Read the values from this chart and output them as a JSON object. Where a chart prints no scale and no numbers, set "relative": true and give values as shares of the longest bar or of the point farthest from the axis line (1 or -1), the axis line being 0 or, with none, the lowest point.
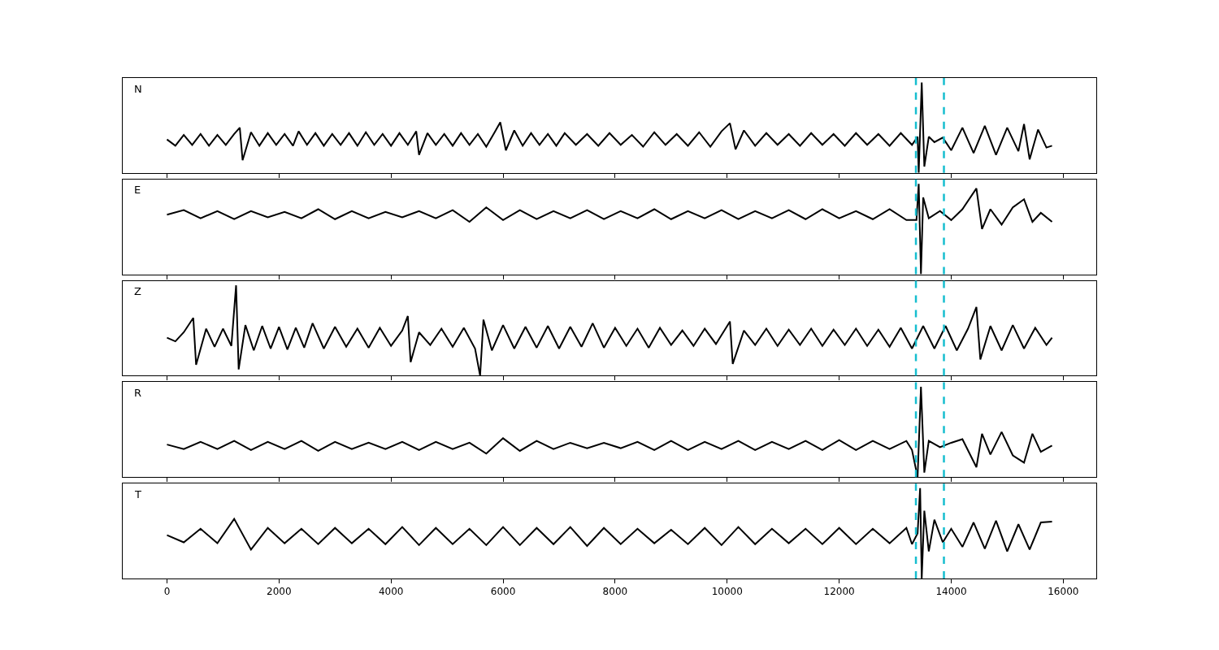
{
  "chart_data": [
    {
      "type": "line",
      "title": "N",
      "relative": true,
      "xlim": [
        -790,
        16590
      ],
      "xticks": [
        0,
        2000,
        4000,
        6000,
        8000,
        10000,
        12000,
        14000,
        16000
      ],
      "tick_labels": false,
      "line_style": "solid",
      "x": [
        0,
        150,
        300,
        450,
        600,
        750,
        900,
        1050,
        1200,
        1300,
        1350,
        1500,
        1650,
        1800,
        1950,
        2100,
        2250,
        2350,
        2500,
        2650,
        2800,
        2950,
        3100,
        3250,
        3400,
        3550,
        3700,
        3850,
        4000,
        4150,
        4300,
        4450,
        4500,
        4650,
        4800,
        4950,
        5100,
        5250,
        5400,
        5550,
        5700,
        5850,
        5950,
        6050,
        6200,
        6350,
        6500,
        6650,
        6800,
        6950,
        7100,
        7300,
        7500,
        7700,
        7900,
        8100,
        8300,
        8500,
        8700,
        8900,
        9100,
        9300,
        9500,
        9700,
        9900,
        10050,
        10150,
        10300,
        10500,
        10700,
        10900,
        11100,
        11300,
        11500,
        11700,
        11900,
        12100,
        12300,
        12500,
        12700,
        12900,
        13100,
        13300,
        13400,
        13420,
        13474,
        13520,
        13600,
        13700,
        13850,
        14000,
        14200,
        14400,
        14600,
        14800,
        15000,
        15200,
        15300,
        15400,
        15550,
        15700,
        15800
      ],
      "series": [
        {
          "color": "#000000",
          "values": [
            0.37,
            0.3,
            0.42,
            0.31,
            0.43,
            0.3,
            0.42,
            0.31,
            0.43,
            0.5,
            0.14,
            0.45,
            0.3,
            0.44,
            0.31,
            0.43,
            0.3,
            0.46,
            0.31,
            0.44,
            0.3,
            0.43,
            0.31,
            0.44,
            0.3,
            0.45,
            0.31,
            0.43,
            0.3,
            0.44,
            0.31,
            0.46,
            0.2,
            0.44,
            0.31,
            0.43,
            0.3,
            0.44,
            0.31,
            0.43,
            0.29,
            0.45,
            0.56,
            0.25,
            0.47,
            0.3,
            0.44,
            0.31,
            0.43,
            0.3,
            0.44,
            0.31,
            0.43,
            0.3,
            0.44,
            0.31,
            0.42,
            0.29,
            0.45,
            0.31,
            0.43,
            0.3,
            0.45,
            0.29,
            0.46,
            0.55,
            0.26,
            0.47,
            0.3,
            0.44,
            0.31,
            0.43,
            0.3,
            0.44,
            0.31,
            0.43,
            0.3,
            0.44,
            0.31,
            0.43,
            0.3,
            0.44,
            0.31,
            0.4,
            0.0,
            1.0,
            0.07,
            0.4,
            0.34,
            0.39,
            0.25,
            0.5,
            0.22,
            0.52,
            0.2,
            0.5,
            0.24,
            0.54,
            0.15,
            0.48,
            0.28,
            0.3
          ]
        }
      ],
      "ref_lines": [
        {
          "axis": "x",
          "value": 13370,
          "color": "#17becf",
          "line_style": "dashed"
        },
        {
          "axis": "x",
          "value": 13870,
          "color": "#17becf",
          "line_style": "dashed"
        }
      ]
    },
    {
      "type": "line",
      "title": "E",
      "relative": true,
      "xlim": [
        -790,
        16590
      ],
      "xticks": [
        0,
        2000,
        4000,
        6000,
        8000,
        10000,
        12000,
        14000,
        16000
      ],
      "tick_labels": false,
      "line_style": "solid",
      "x": [
        0,
        300,
        600,
        900,
        1200,
        1500,
        1800,
        2100,
        2400,
        2700,
        3000,
        3300,
        3600,
        3900,
        4200,
        4500,
        4800,
        5100,
        5400,
        5700,
        6000,
        6300,
        6600,
        6900,
        7200,
        7500,
        7800,
        8100,
        8400,
        8700,
        9000,
        9300,
        9600,
        9900,
        10200,
        10500,
        10800,
        11100,
        11400,
        11700,
        12000,
        12300,
        12600,
        12900,
        13200,
        13380,
        13420,
        13460,
        13500,
        13600,
        13800,
        14000,
        14200,
        14450,
        14550,
        14700,
        14900,
        15100,
        15300,
        15450,
        15600,
        15800
      ],
      "series": [
        {
          "color": "#000000",
          "values": [
            0.66,
            0.71,
            0.62,
            0.7,
            0.61,
            0.7,
            0.63,
            0.69,
            0.62,
            0.72,
            0.61,
            0.7,
            0.62,
            0.69,
            0.63,
            0.7,
            0.62,
            0.71,
            0.58,
            0.74,
            0.6,
            0.71,
            0.61,
            0.7,
            0.62,
            0.71,
            0.61,
            0.7,
            0.62,
            0.72,
            0.61,
            0.7,
            0.62,
            0.71,
            0.61,
            0.7,
            0.62,
            0.71,
            0.61,
            0.72,
            0.62,
            0.7,
            0.61,
            0.72,
            0.6,
            0.6,
            1.0,
            0.0,
            0.85,
            0.62,
            0.7,
            0.6,
            0.72,
            0.95,
            0.5,
            0.72,
            0.55,
            0.74,
            0.83,
            0.58,
            0.68,
            0.58
          ]
        }
      ],
      "ref_lines": [
        {
          "axis": "x",
          "value": 13370,
          "color": "#17becf",
          "line_style": "dashed"
        },
        {
          "axis": "x",
          "value": 13870,
          "color": "#17becf",
          "line_style": "dashed"
        }
      ]
    },
    {
      "type": "line",
      "title": "Z",
      "relative": true,
      "xlim": [
        -790,
        16590
      ],
      "xticks": [
        0,
        2000,
        4000,
        6000,
        8000,
        10000,
        12000,
        14000,
        16000
      ],
      "tick_labels": false,
      "line_style": "solid",
      "x": [
        0,
        150,
        300,
        470,
        520,
        700,
        850,
        1000,
        1150,
        1234,
        1280,
        1400,
        1550,
        1700,
        1850,
        2000,
        2150,
        2300,
        2450,
        2600,
        2800,
        3000,
        3200,
        3400,
        3600,
        3800,
        4000,
        4200,
        4300,
        4350,
        4500,
        4700,
        4900,
        5100,
        5300,
        5500,
        5590,
        5650,
        5800,
        6000,
        6200,
        6400,
        6600,
        6800,
        7000,
        7200,
        7400,
        7600,
        7800,
        8000,
        8200,
        8400,
        8600,
        8800,
        9000,
        9200,
        9400,
        9600,
        9800,
        10050,
        10100,
        10300,
        10500,
        10700,
        10900,
        11100,
        11300,
        11500,
        11700,
        11900,
        12100,
        12300,
        12500,
        12700,
        12900,
        13100,
        13300,
        13500,
        13700,
        13900,
        14100,
        14300,
        14450,
        14520,
        14700,
        14900,
        15100,
        15300,
        15500,
        15700,
        15800
      ],
      "series": [
        {
          "color": "#000000",
          "values": [
            0.42,
            0.38,
            0.48,
            0.64,
            0.12,
            0.52,
            0.32,
            0.52,
            0.33,
            1.0,
            0.07,
            0.56,
            0.28,
            0.55,
            0.3,
            0.54,
            0.29,
            0.53,
            0.31,
            0.58,
            0.3,
            0.54,
            0.32,
            0.52,
            0.31,
            0.53,
            0.33,
            0.5,
            0.66,
            0.15,
            0.48,
            0.34,
            0.52,
            0.32,
            0.53,
            0.3,
            0.0,
            0.62,
            0.28,
            0.56,
            0.3,
            0.54,
            0.31,
            0.55,
            0.3,
            0.54,
            0.32,
            0.58,
            0.31,
            0.53,
            0.33,
            0.52,
            0.31,
            0.53,
            0.34,
            0.5,
            0.33,
            0.52,
            0.35,
            0.6,
            0.13,
            0.5,
            0.34,
            0.52,
            0.33,
            0.51,
            0.34,
            0.52,
            0.33,
            0.51,
            0.34,
            0.52,
            0.33,
            0.51,
            0.32,
            0.53,
            0.3,
            0.55,
            0.3,
            0.55,
            0.28,
            0.52,
            0.76,
            0.18,
            0.55,
            0.28,
            0.56,
            0.3,
            0.53,
            0.34,
            0.42
          ]
        }
      ],
      "ref_lines": [
        {
          "axis": "x",
          "value": 13370,
          "color": "#17becf",
          "line_style": "dashed"
        },
        {
          "axis": "x",
          "value": 13870,
          "color": "#17becf",
          "line_style": "dashed"
        }
      ]
    },
    {
      "type": "line",
      "title": "R",
      "relative": true,
      "xlim": [
        -790,
        16590
      ],
      "xticks": [
        0,
        2000,
        4000,
        6000,
        8000,
        10000,
        12000,
        14000,
        16000
      ],
      "tick_labels": false,
      "line_style": "solid",
      "x": [
        0,
        300,
        600,
        900,
        1200,
        1500,
        1800,
        2100,
        2400,
        2700,
        3000,
        3300,
        3600,
        3900,
        4200,
        4500,
        4800,
        5100,
        5400,
        5700,
        6000,
        6300,
        6600,
        6900,
        7200,
        7500,
        7800,
        8100,
        8400,
        8700,
        9000,
        9300,
        9600,
        9900,
        10200,
        10500,
        10800,
        11100,
        11400,
        11700,
        12000,
        12300,
        12600,
        12900,
        13200,
        13300,
        13400,
        13460,
        13520,
        13600,
        13800,
        14000,
        14200,
        14450,
        14550,
        14700,
        14900,
        15100,
        15300,
        15450,
        15600,
        15800
      ],
      "series": [
        {
          "color": "#000000",
          "values": [
            0.36,
            0.31,
            0.39,
            0.31,
            0.4,
            0.3,
            0.39,
            0.31,
            0.4,
            0.29,
            0.39,
            0.31,
            0.38,
            0.31,
            0.39,
            0.3,
            0.39,
            0.31,
            0.38,
            0.26,
            0.43,
            0.29,
            0.4,
            0.31,
            0.38,
            0.32,
            0.38,
            0.32,
            0.39,
            0.3,
            0.4,
            0.3,
            0.39,
            0.31,
            0.4,
            0.3,
            0.39,
            0.31,
            0.4,
            0.3,
            0.41,
            0.3,
            0.4,
            0.31,
            0.4,
            0.3,
            0.0,
            1.0,
            0.05,
            0.4,
            0.33,
            0.38,
            0.42,
            0.11,
            0.48,
            0.25,
            0.5,
            0.24,
            0.16,
            0.48,
            0.28,
            0.35
          ]
        }
      ],
      "ref_lines": [
        {
          "axis": "x",
          "value": 13370,
          "color": "#17becf",
          "line_style": "dashed"
        },
        {
          "axis": "x",
          "value": 13870,
          "color": "#17becf",
          "line_style": "dashed"
        }
      ]
    },
    {
      "type": "line",
      "title": "T",
      "relative": true,
      "xlim": [
        -790,
        16590
      ],
      "xticks": [
        0,
        2000,
        4000,
        6000,
        8000,
        10000,
        12000,
        14000,
        16000
      ],
      "tick_labels": "x",
      "line_style": "solid",
      "x": [
        0,
        300,
        600,
        900,
        1200,
        1500,
        1800,
        2100,
        2400,
        2700,
        3000,
        3300,
        3600,
        3900,
        4200,
        4500,
        4800,
        5100,
        5400,
        5700,
        6000,
        6300,
        6600,
        6900,
        7200,
        7500,
        7800,
        8100,
        8400,
        8700,
        9000,
        9300,
        9600,
        9900,
        10200,
        10500,
        10800,
        11100,
        11400,
        11700,
        12000,
        12300,
        12600,
        12900,
        13200,
        13300,
        13400,
        13445,
        13474,
        13520,
        13600,
        13700,
        13850,
        14000,
        14200,
        14400,
        14600,
        14800,
        15000,
        15200,
        15400,
        15600,
        15800
      ],
      "series": [
        {
          "color": "#000000",
          "values": [
            0.48,
            0.4,
            0.55,
            0.39,
            0.66,
            0.32,
            0.56,
            0.39,
            0.55,
            0.38,
            0.56,
            0.39,
            0.55,
            0.38,
            0.57,
            0.37,
            0.56,
            0.38,
            0.55,
            0.37,
            0.57,
            0.37,
            0.56,
            0.38,
            0.57,
            0.36,
            0.56,
            0.38,
            0.55,
            0.39,
            0.54,
            0.38,
            0.56,
            0.37,
            0.57,
            0.38,
            0.55,
            0.39,
            0.55,
            0.38,
            0.56,
            0.38,
            0.55,
            0.39,
            0.56,
            0.38,
            0.5,
            1.0,
            0.0,
            0.75,
            0.3,
            0.65,
            0.4,
            0.55,
            0.35,
            0.62,
            0.33,
            0.64,
            0.3,
            0.6,
            0.32,
            0.62,
            0.63
          ]
        }
      ],
      "ref_lines": [
        {
          "axis": "x",
          "value": 13370,
          "color": "#17becf",
          "line_style": "dashed"
        },
        {
          "axis": "x",
          "value": 13870,
          "color": "#17becf",
          "line_style": "dashed"
        }
      ]
    }
  ]
}
